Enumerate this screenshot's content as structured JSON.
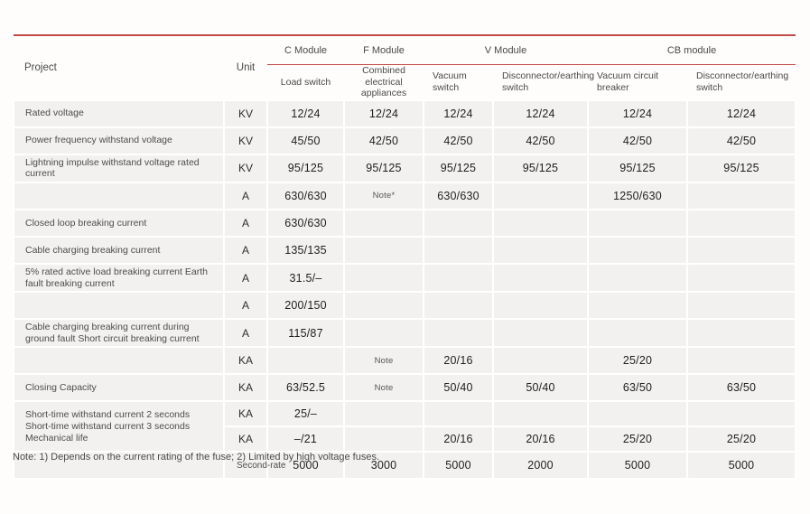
{
  "accent": {
    "rule_red": "#c24a46",
    "row_bg": "#f2f1ef",
    "page_bg": "#fefdfc"
  },
  "header": {
    "project": "Project",
    "unit": "Unit",
    "modules": [
      {
        "label": "C Module"
      },
      {
        "label": "F Module"
      },
      {
        "label": "V Module"
      },
      {
        "label": "CB module"
      }
    ],
    "subheaders": [
      "Load switch",
      "Combined electrical appliances",
      "Vacuum switch",
      "Disconnector/earthing switch",
      "Vacuum circuit breaker",
      "Disconnector/earthing switch"
    ]
  },
  "rows": [
    {
      "project": "Rated voltage",
      "unit": "KV",
      "values": [
        "12/24",
        "12/24",
        "12/24",
        "12/24",
        "12/24",
        "12/24"
      ]
    },
    {
      "project": "Power frequency withstand voltage",
      "unit": "KV",
      "values": [
        "45/50",
        "42/50",
        "42/50",
        "42/50",
        "42/50",
        "42/50"
      ]
    },
    {
      "project": "Lightning impulse withstand voltage rated current",
      "unit": "KV",
      "values": [
        "95/125",
        "95/125",
        "95/125",
        "95/125",
        "95/125",
        "95/125"
      ]
    },
    {
      "project": "",
      "unit": "A",
      "values": [
        "630/630",
        "Note*",
        "630/630",
        "",
        "1250/630",
        ""
      ]
    },
    {
      "project": "Closed loop breaking current",
      "unit": "A",
      "values": [
        "630/630",
        "",
        "",
        "",
        "",
        ""
      ]
    },
    {
      "project": "Cable charging breaking current",
      "unit": "A",
      "values": [
        "135/135",
        "",
        "",
        "",
        "",
        ""
      ]
    },
    {
      "project": "5% rated active load breaking current Earth fault breaking current",
      "unit": "A",
      "values": [
        "31.5/–",
        "",
        "",
        "",
        "",
        ""
      ]
    },
    {
      "project": "",
      "unit": "A",
      "values": [
        "200/150",
        "",
        "",
        "",
        "",
        ""
      ]
    },
    {
      "project": "Cable charging breaking current during ground fault Short circuit breaking current",
      "unit": "A",
      "values": [
        "115/87",
        "",
        "",
        "",
        "",
        ""
      ]
    },
    {
      "project": "",
      "unit": "KA",
      "values": [
        "",
        "Note",
        "20/16",
        "",
        "25/20",
        ""
      ]
    },
    {
      "project": "Closing Capacity",
      "unit": "KA",
      "values": [
        "63/52.5",
        "Note",
        "50/40",
        "50/40",
        "63/50",
        "63/50"
      ]
    },
    {
      "project": "Short-time withstand current 2 seconds Short-time withstand current 3 seconds Mechanical life",
      "unit": "KA",
      "project_rowspan": 2,
      "values": [
        "25/–",
        "",
        "",
        "",
        "",
        ""
      ]
    },
    {
      "project": null,
      "unit": "KA",
      "values": [
        "–/21",
        "",
        "20/16",
        "20/16",
        "25/20",
        "25/20"
      ]
    },
    {
      "project": "",
      "unit": "Second-rate",
      "unit_small": true,
      "values": [
        "5000",
        "3000",
        "5000",
        "2000",
        "5000",
        "5000"
      ]
    }
  ],
  "footnote": "Note: 1) Depends on the current rating of the fuse; 2) Limited by high voltage fuses."
}
